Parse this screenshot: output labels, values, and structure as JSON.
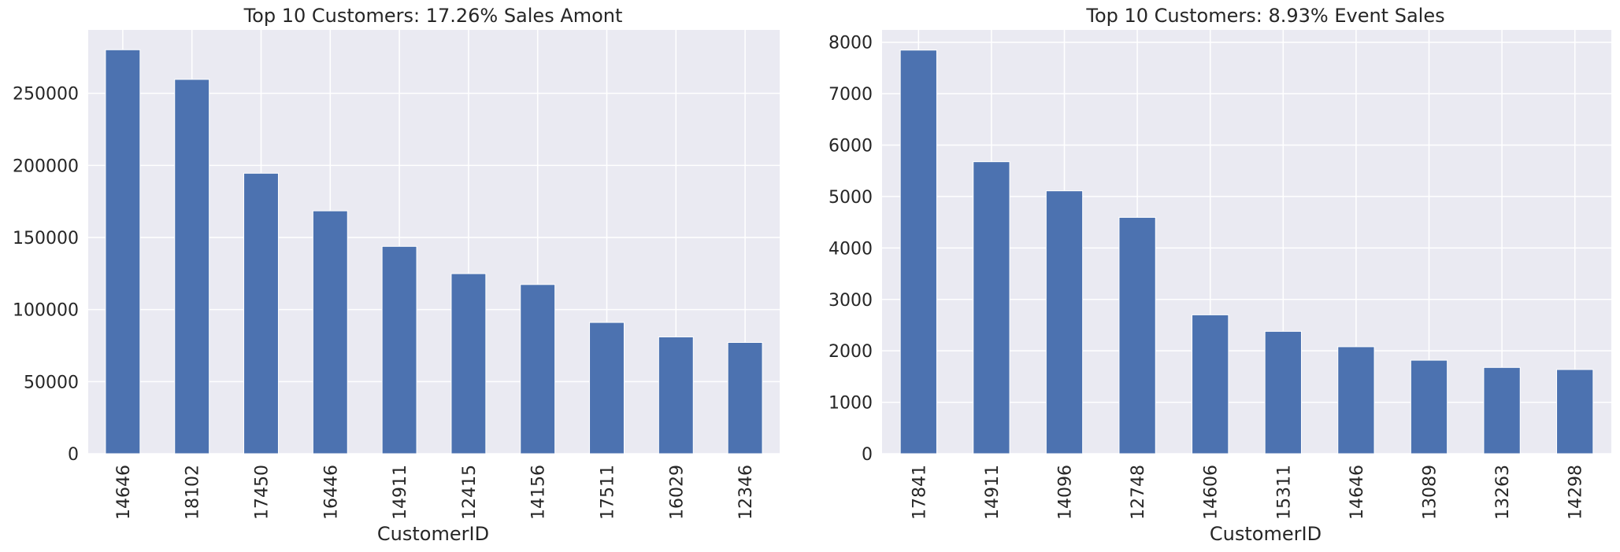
{
  "chart_data": [
    {
      "type": "bar",
      "title": "Top 10 Customers: 17.26% Sales Amont",
      "xlabel": "CustomerID",
      "ylabel": "",
      "categories": [
        "14646",
        "18102",
        "17450",
        "16446",
        "14911",
        "12415",
        "14156",
        "17511",
        "16029",
        "12346"
      ],
      "values": [
        280206,
        259657,
        194551,
        168472,
        143825,
        124914,
        117379,
        91062,
        81024,
        77184
      ],
      "ylim": [
        0,
        294000
      ],
      "yticks": [
        0,
        50000,
        100000,
        150000,
        200000,
        250000
      ],
      "ytick_labels": [
        "0",
        "50000",
        "100000",
        "150000",
        "200000",
        "250000"
      ],
      "grid": true,
      "bar_color": "#4c72b0",
      "background_color": "#eaeaf2"
    },
    {
      "type": "bar",
      "title": "Top 10 Customers: 8.93% Event Sales",
      "xlabel": "CustomerID",
      "ylabel": "",
      "categories": [
        "17841",
        "14911",
        "14096",
        "12748",
        "14606",
        "15311",
        "14646",
        "13089",
        "13263",
        "14298"
      ],
      "values": [
        7847,
        5677,
        5111,
        4595,
        2700,
        2379,
        2080,
        1818,
        1677,
        1637
      ],
      "ylim": [
        0,
        8240
      ],
      "yticks": [
        0,
        1000,
        2000,
        3000,
        4000,
        5000,
        6000,
        7000,
        8000
      ],
      "ytick_labels": [
        "0",
        "1000",
        "2000",
        "3000",
        "4000",
        "5000",
        "6000",
        "7000",
        "8000"
      ],
      "grid": true,
      "bar_color": "#4c72b0",
      "background_color": "#eaeaf2"
    }
  ]
}
